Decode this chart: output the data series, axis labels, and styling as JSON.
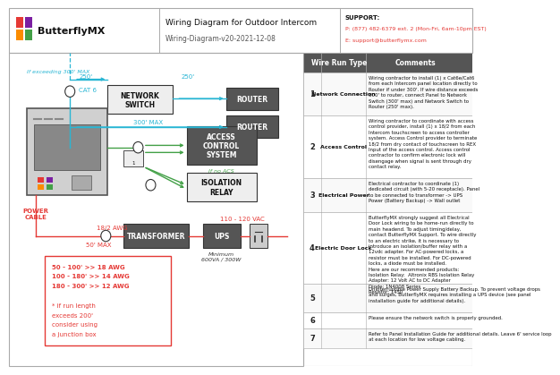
{
  "title": "Wiring Diagram for Outdoor Intercom",
  "subtitle": "Wiring-Diagram-v20-2021-12-08",
  "company": "ButterflyMX",
  "support_line1": "SUPPORT:",
  "support_line2": "P: (877) 482-6379 ext. 2 (Mon-Fri, 6am-10pm EST)",
  "support_line3": "E: support@butterflymx.com",
  "bg_color": "#ffffff",
  "cyan": "#29b6d4",
  "green": "#43a047",
  "red": "#e53935",
  "dark_red": "#c62828",
  "box_dark": "#555555",
  "logo_colors": [
    "#e53935",
    "#7b1fa2",
    "#fb8c00",
    "#43a047"
  ],
  "table_rows": [
    {
      "num": "1",
      "type": "Network Connection",
      "comment": "Wiring contractor to install (1) x Cat6e/Cat6\nfrom each Intercom panel location directly to\nRouter if under 300'. If wire distance exceeds\n300' to router, connect Panel to Network\nSwitch (300' max) and Network Switch to\nRouter (250' max)."
    },
    {
      "num": "2",
      "type": "Access Control",
      "comment": "Wiring contractor to coordinate with access\ncontrol provider, install (1) x 18/2 from each\nIntercom touchscreen to access controller\nsystem. Access Control provider to terminate\n18/2 from dry contact of touchscreen to REX\nInput of the access control. Access control\ncontractor to confirm electronic lock will\ndisengage when signal is sent through dry\ncontact relay."
    },
    {
      "num": "3",
      "type": "Electrical Power",
      "comment": "Electrical contractor to coordinate (1)\ndedicated circuit (with 5-20 receptacle). Panel\nto be connected to transformer -> UPS\nPower (Battery Backup) -> Wall outlet"
    },
    {
      "num": "4",
      "type": "Electric Door Lock",
      "comment": "ButterflyMX strongly suggest all Electrical\nDoor Lock wiring to be home-run directly to\nmain headend. To adjust timing/delay,\ncontact ButterflyMX Support. To wire directly\nto an electric strike, it is necessary to\nintroduce an isolation/buffer relay with a\n12vdc adapter. For AC-powered locks, a\nresistor must be installed. For DC-powered\nlocks, a diode must be installed.\nHere are our recommended products:\nIsolation Relay:  Altronix RBS Isolation Relay\nAdapter: 12 Volt AC to DC Adapter\nDiode: 1N4008 Series\nResistor: 1450"
    },
    {
      "num": "5",
      "type": "",
      "comment": "Uninterruptible Power Supply Battery Backup. To prevent voltage drops\nand surges, ButterflyMX requires installing a UPS device (see panel\ninstallation guide for additional details)."
    },
    {
      "num": "6",
      "type": "",
      "comment": "Please ensure the network switch is properly grounded."
    },
    {
      "num": "7",
      "type": "",
      "comment": "Refer to Panel Installation Guide for additional details. Leave 6' service loop\nat each location for low voltage cabling."
    }
  ]
}
